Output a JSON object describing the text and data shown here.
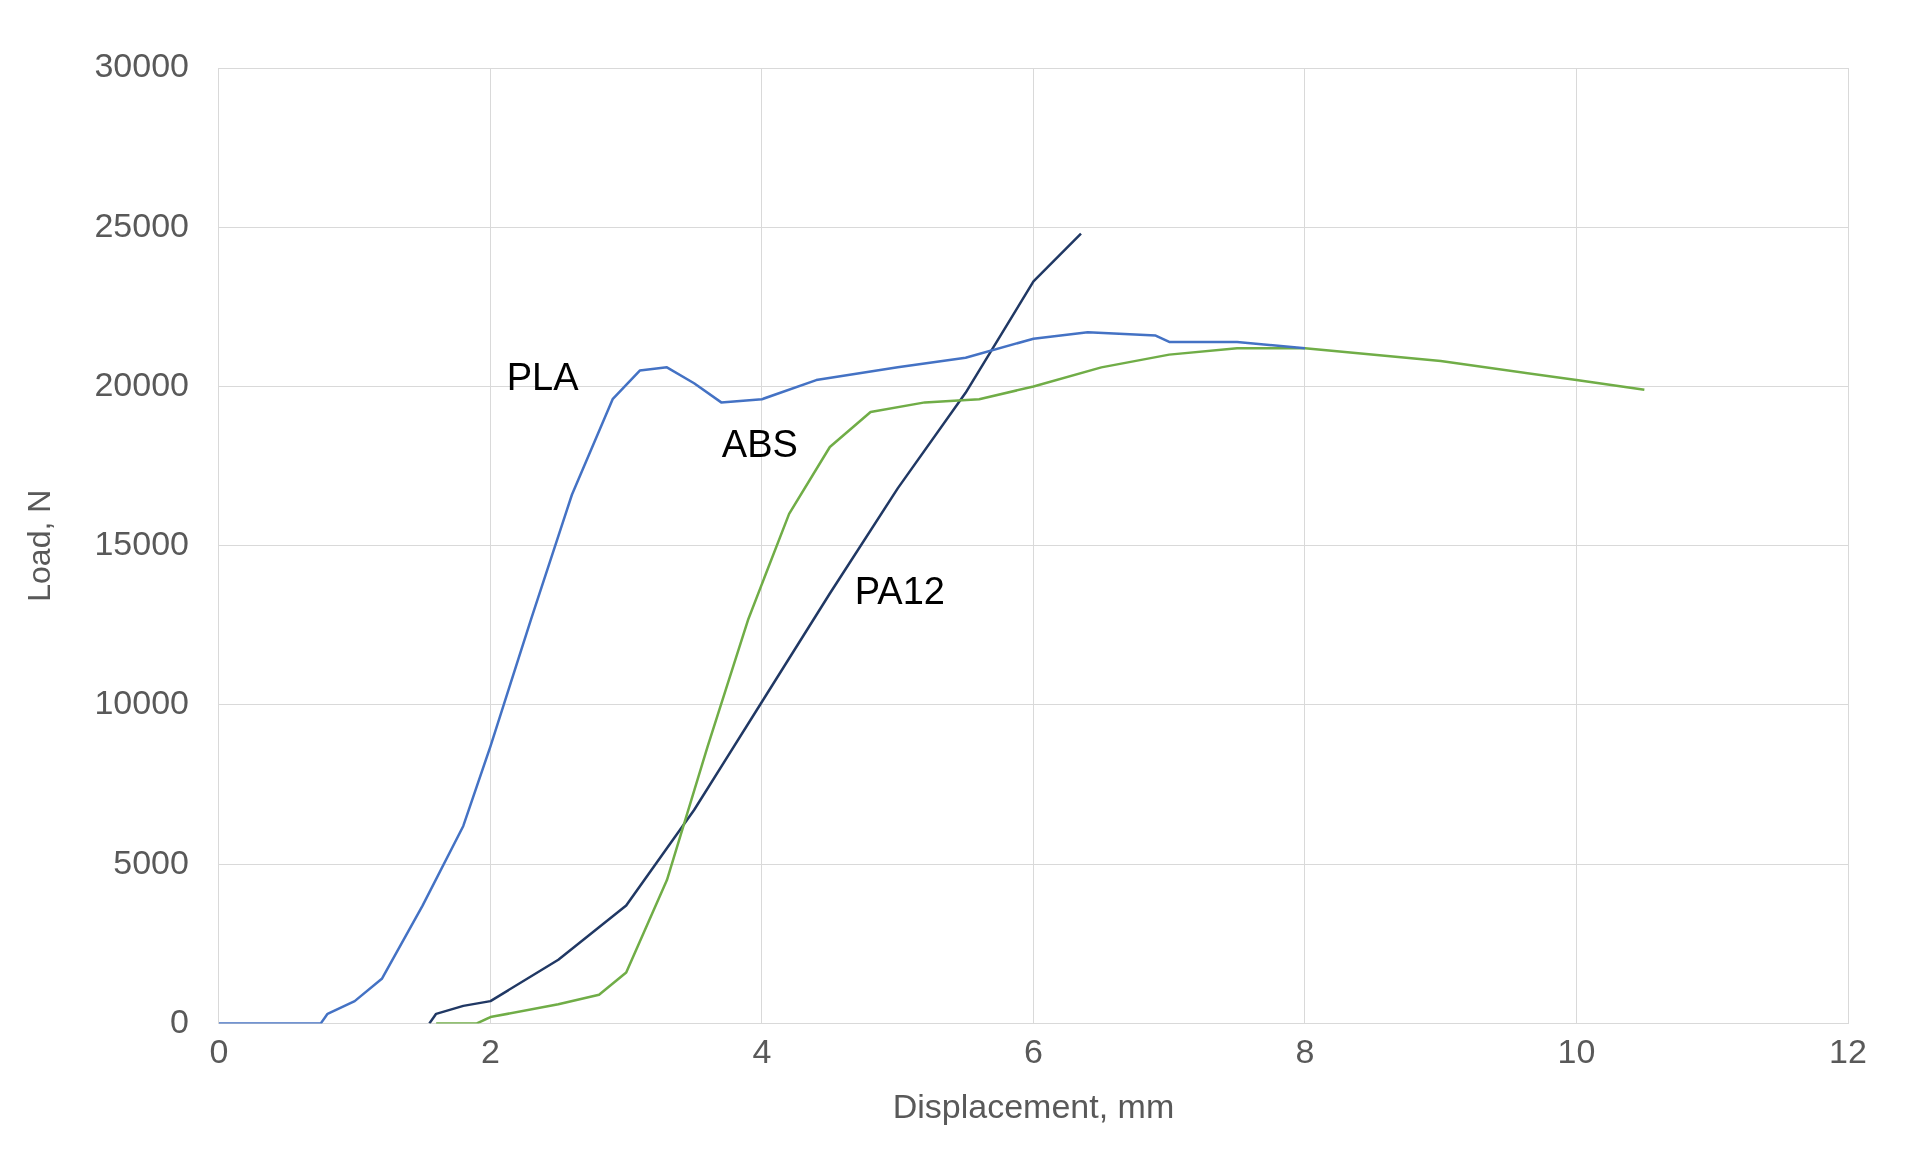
{
  "chart_data": {
    "type": "line",
    "xlabel": "Displacement, mm",
    "ylabel": "Load, N",
    "xlim": [
      0,
      12
    ],
    "xticks": [
      0,
      2,
      4,
      6,
      8,
      10,
      12
    ],
    "ylim": [
      0,
      30000
    ],
    "yticks": [
      0,
      5000,
      10000,
      15000,
      20000,
      25000,
      30000
    ],
    "grid": true,
    "legend": false,
    "marker": "none",
    "line_style": "solid",
    "series": [
      {
        "name": "PLA",
        "color": "#4472c4",
        "x": [
          0,
          0.75,
          0.8,
          1.0,
          1.2,
          1.5,
          1.8,
          2.0,
          2.3,
          2.6,
          2.9,
          3.1,
          3.3,
          3.5,
          3.7,
          4.0,
          4.4,
          5.0,
          5.5,
          6.0,
          6.4,
          6.9,
          7.0,
          7.5,
          8.0
        ],
        "values": [
          0,
          0,
          300,
          700,
          1400,
          3700,
          6200,
          8700,
          12700,
          16600,
          19600,
          20500,
          20600,
          20100,
          19500,
          19600,
          20200,
          20600,
          20900,
          21500,
          21700,
          21600,
          21400,
          21400,
          21200
        ]
      },
      {
        "name": "ABS",
        "color": "#70ad47",
        "x": [
          1.6,
          1.9,
          2.0,
          2.5,
          2.8,
          3.0,
          3.3,
          3.6,
          3.9,
          4.2,
          4.5,
          4.8,
          5.2,
          5.6,
          6.0,
          6.5,
          7.0,
          7.5,
          8.0,
          9.0,
          10.0,
          10.5
        ],
        "values": [
          0,
          0,
          200,
          600,
          900,
          1600,
          4500,
          8700,
          12700,
          16000,
          18100,
          19200,
          19500,
          19600,
          20000,
          20600,
          21000,
          21200,
          21200,
          20800,
          20200,
          19900
        ]
      },
      {
        "name": "PA12",
        "color": "#203864",
        "x": [
          1.55,
          1.6,
          1.8,
          2.0,
          2.5,
          3.0,
          3.5,
          4.0,
          4.5,
          5.0,
          5.5,
          6.0,
          6.35
        ],
        "values": [
          0,
          300,
          550,
          700,
          2000,
          3700,
          6700,
          10100,
          13500,
          16800,
          19800,
          23300,
          24800
        ]
      }
    ]
  }
}
